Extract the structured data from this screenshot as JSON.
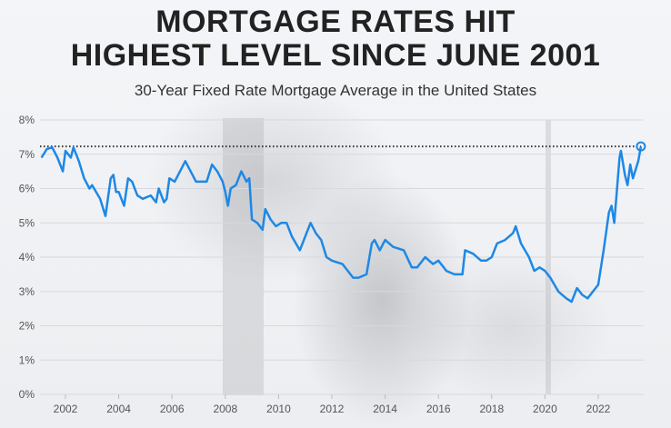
{
  "title_line1": "MORTGAGE RATES HIT",
  "title_line2": "HIGHEST LEVEL SINCE JUNE 2001",
  "subtitle": "30-Year Fixed Rate Mortgage Average in the United States",
  "colors": {
    "line": "#1e88e5",
    "reference_line": "#333333",
    "grid": "#d6d9dd"
  },
  "chart_data": {
    "type": "line",
    "title": "MORTGAGE RATES HIT HIGHEST LEVEL SINCE JUNE 2001",
    "subtitle": "30-Year Fixed Rate Mortgage Average in the United States",
    "xlim": [
      2001.0,
      2023.7
    ],
    "ylim": [
      0,
      8
    ],
    "grid": true,
    "y_ticks": [
      "0%",
      "1%",
      "2%",
      "3%",
      "4%",
      "5%",
      "6%",
      "7%",
      "8%"
    ],
    "x_ticks": [
      "2002",
      "2004",
      "2006",
      "2008",
      "2010",
      "2012",
      "2014",
      "2016",
      "2018",
      "2020",
      "2022"
    ],
    "reference_line": {
      "y": 7.23,
      "style": "dotted"
    },
    "end_marker": {
      "x": 2023.6,
      "y": 7.23
    },
    "series": [
      {
        "x": [
          2001.1,
          2001.3,
          2001.5,
          2001.7,
          2001.9,
          2002.0,
          2002.2,
          2002.3,
          2002.5,
          2002.7,
          2002.9,
          2003.0,
          2003.3,
          2003.5,
          2003.7,
          2003.8,
          2003.9,
          2004.0,
          2004.2,
          2004.35,
          2004.5,
          2004.7,
          2004.9,
          2005.2,
          2005.4,
          2005.5,
          2005.7,
          2005.8,
          2005.9,
          2006.1,
          2006.3,
          2006.5,
          2006.7,
          2006.9,
          2007.1,
          2007.3,
          2007.5,
          2007.7,
          2007.9,
          2008.0,
          2008.1,
          2008.2,
          2008.4,
          2008.6,
          2008.8,
          2008.9,
          2009.0,
          2009.2,
          2009.4,
          2009.5,
          2009.7,
          2009.9,
          2010.1,
          2010.3,
          2010.5,
          2010.8,
          2011.1,
          2011.2,
          2011.4,
          2011.6,
          2011.8,
          2012.0,
          2012.4,
          2012.8,
          2013.0,
          2013.3,
          2013.5,
          2013.6,
          2013.8,
          2014.0,
          2014.3,
          2014.7,
          2015.0,
          2015.2,
          2015.5,
          2015.8,
          2016.0,
          2016.3,
          2016.6,
          2016.9,
          2017.0,
          2017.3,
          2017.6,
          2017.8,
          2018.0,
          2018.2,
          2018.5,
          2018.8,
          2018.9,
          2019.1,
          2019.4,
          2019.6,
          2019.8,
          2020.0,
          2020.2,
          2020.5,
          2020.8,
          2021.0,
          2021.2,
          2021.4,
          2021.6,
          2021.9,
          2022.0,
          2022.2,
          2022.4,
          2022.5,
          2022.6,
          2022.8,
          2022.85,
          2023.0,
          2023.1,
          2023.2,
          2023.3,
          2023.5,
          2023.6
        ],
        "y": [
          6.9,
          7.15,
          7.2,
          6.9,
          6.5,
          7.1,
          6.9,
          7.2,
          6.8,
          6.3,
          6.0,
          6.1,
          5.7,
          5.2,
          6.3,
          6.4,
          5.9,
          5.9,
          5.5,
          6.3,
          6.2,
          5.8,
          5.7,
          5.8,
          5.6,
          6.0,
          5.6,
          5.7,
          6.3,
          6.2,
          6.5,
          6.8,
          6.5,
          6.2,
          6.2,
          6.2,
          6.7,
          6.5,
          6.2,
          5.9,
          5.5,
          6.0,
          6.1,
          6.5,
          6.2,
          6.3,
          5.1,
          5.0,
          4.8,
          5.4,
          5.1,
          4.9,
          5.0,
          5.0,
          4.6,
          4.2,
          4.8,
          5.0,
          4.7,
          4.5,
          4.0,
          3.9,
          3.8,
          3.4,
          3.4,
          3.5,
          4.4,
          4.5,
          4.2,
          4.5,
          4.3,
          4.2,
          3.7,
          3.7,
          4.0,
          3.8,
          3.9,
          3.6,
          3.5,
          3.5,
          4.2,
          4.1,
          3.9,
          3.9,
          4.0,
          4.4,
          4.5,
          4.7,
          4.9,
          4.4,
          4.0,
          3.6,
          3.7,
          3.6,
          3.4,
          3.0,
          2.8,
          2.7,
          3.1,
          2.9,
          2.8,
          3.1,
          3.2,
          4.2,
          5.3,
          5.5,
          5.0,
          6.9,
          7.1,
          6.4,
          6.1,
          6.7,
          6.3,
          6.8,
          7.23
        ]
      }
    ]
  }
}
